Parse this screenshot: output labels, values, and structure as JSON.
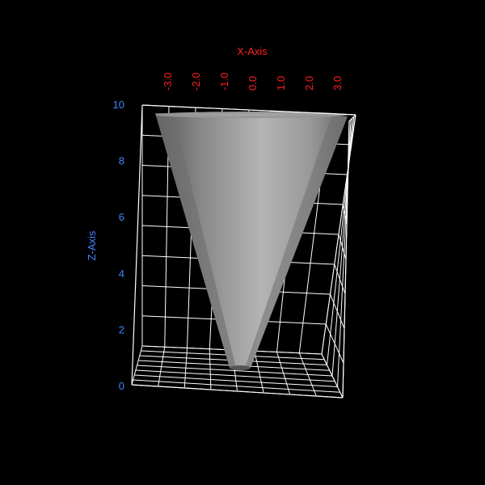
{
  "colors": {
    "background": "#000000",
    "grid": "#ffffff",
    "x_axis": "#ff2020",
    "z_axis": "#3f84ff",
    "surface_light": "#b8b8b8",
    "surface_dark": "#4a4a4a"
  },
  "x_axis": {
    "title": "X-Axis",
    "ticks": [
      "-3.0",
      "-2.0",
      "-1.0",
      "0.0",
      "1.0",
      "2.0",
      "3.0"
    ]
  },
  "z_axis": {
    "title": "Z-Axis",
    "ticks": [
      "0",
      "2",
      "4",
      "6",
      "8",
      "10"
    ]
  },
  "surface": {
    "shape": "cone",
    "z_min": 0.6,
    "z_max": 10
  }
}
